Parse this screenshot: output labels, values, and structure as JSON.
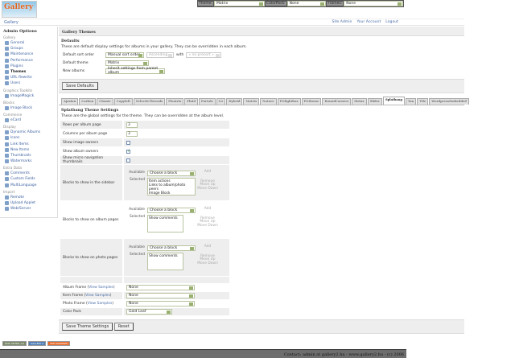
{
  "logo": {
    "text": "Gallery"
  },
  "topbar": {
    "theme_label": "Theme:",
    "theme_value": "Matrix",
    "colorpack_label": "ColorPack:",
    "colorpack_value": "None",
    "frames_label": "Frames:",
    "frames_value": "None"
  },
  "breadcrumb": "Gallery",
  "toplinks": [
    "Site Admin",
    "Your Account",
    "Logout"
  ],
  "sidebar": {
    "title": "Admin Options",
    "groups": [
      {
        "name": "Gallery",
        "items": [
          "General",
          "Groups",
          "Maintenance",
          "Performance",
          "Plugins",
          "Themes",
          "URL Rewrite",
          "Users"
        ]
      },
      {
        "name": "Graphics Toolkits",
        "items": [
          "ImageMagick"
        ]
      },
      {
        "name": "Blocks",
        "items": [
          "Image Block"
        ]
      },
      {
        "name": "Commerce",
        "items": [
          "eCard"
        ]
      },
      {
        "name": "Display",
        "items": [
          "Dynamic Albums",
          "Icons",
          "Link Items",
          "New Items",
          "Thumbnails",
          "Watermarks"
        ]
      },
      {
        "name": "Extra Data",
        "items": [
          "Comments",
          "Custom Fields",
          "MultiLanguage"
        ]
      },
      {
        "name": "Import",
        "items": [
          "Remote",
          "Upload Applet",
          "Web/Server"
        ]
      }
    ],
    "current": "Themes"
  },
  "main": {
    "title": "Gallery Themes",
    "defaults": {
      "heading": "Defaults",
      "description": "These are default display settings for albums in your gallery. They can be overridden in each album.",
      "sort_label": "Default sort order",
      "sort_value": "Manual sort order",
      "sort_dir": "Ascending",
      "with_label": "with",
      "with_value": "« no presort »",
      "theme_label": "Default theme",
      "theme_value": "Matrix",
      "new_albums_label": "New albums",
      "new_albums_value": "Inherit settings from parent album",
      "save_button": "Save Defaults"
    },
    "tabs": [
      "Ajaxian",
      "Carbon",
      "Classic",
      "Copyleft",
      "EclecticThreads",
      "Floatrix",
      "Fluid",
      "Portals",
      "G1",
      "Hybrid",
      "Matrix",
      "Nature",
      "PGlightbox",
      "PGtheme",
      "RoundCorners",
      "Siriux",
      "Slider",
      "Splatbang",
      "Tan",
      "Tile",
      "WordpressEmbedded"
    ],
    "active_tab": "Splatbang",
    "theme_settings": {
      "heading": "Splatbang Theme Settings",
      "description": "These are the global settings for the theme. They can be overridden at the album level.",
      "rows_label": "Rows per album page",
      "rows_value": "3",
      "cols_label": "Columns per album page",
      "cols_value": "3",
      "show_image_owners": {
        "label": "Show image owners",
        "checked": false
      },
      "show_album_owners": {
        "label": "Show album owners",
        "checked": true
      },
      "show_micro_nav": {
        "label": "Show micro navigation thumbnails",
        "checked": false
      },
      "available_label": "Available",
      "selected_label": "Selected",
      "choose_block": "Choose a block",
      "add": "Add",
      "remove": "Remove",
      "move_up": "Move Up",
      "move_down": "Move Down",
      "sidebar_blocks": {
        "label": "Blocks to show in the sidebar",
        "selected": [
          "Item actions",
          "Links to album/photo peers",
          "Image Block"
        ]
      },
      "album_blocks": {
        "label": "Blocks to show on album pages",
        "selected": [
          "Show comments"
        ]
      },
      "photo_blocks": {
        "label": "Blocks to show on photo pages",
        "selected": [
          "Show comments"
        ]
      },
      "view_samples": "View Samples",
      "album_frame": {
        "label": "Album Frame",
        "value": "None"
      },
      "item_frame": {
        "label": "Item Frame",
        "value": "None"
      },
      "photo_frame": {
        "label": "Photo Frame",
        "value": "None"
      },
      "color_pack": {
        "label": "Color Pack",
        "value": "Gold Leaf"
      },
      "save_button": "Save Theme Settings",
      "reset_button": "Reset"
    }
  },
  "badges": [
    "W3C XHTML 1.0",
    "GALLERY 2",
    "PHP POWERED"
  ],
  "footer": "Contact: admin at gallery2.hu - www.gallery2.hu - (c) 2006"
}
